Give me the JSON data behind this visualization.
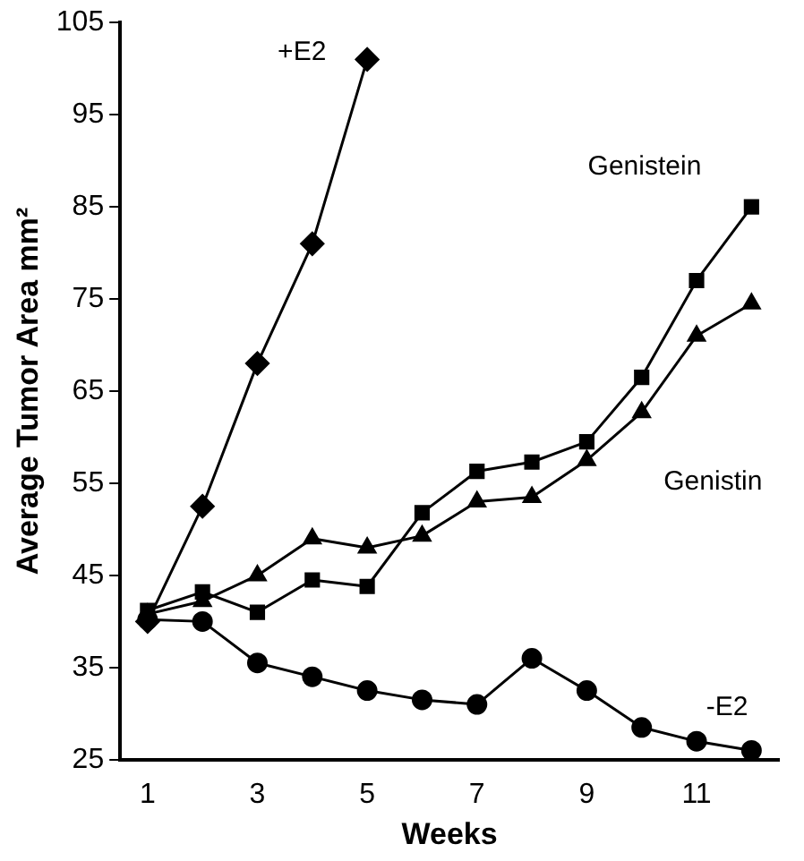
{
  "chart_data": {
    "type": "line",
    "xlabel": "Weeks",
    "ylabel": "Average Tumor Area mm²",
    "categories": [
      "1",
      null,
      "3",
      null,
      "5",
      null,
      "7",
      null,
      "9",
      null,
      "11",
      null
    ],
    "ylim": [
      25,
      105
    ],
    "yticks": [
      25,
      35,
      45,
      55,
      65,
      75,
      85,
      95,
      105
    ],
    "grid": false,
    "legend": false,
    "line_style": "solid",
    "series": [
      {
        "name": "+E2",
        "color": "#000000",
        "marker": "diamond",
        "values": [
          40,
          52.5,
          68,
          81,
          101,
          null,
          null,
          null,
          null,
          null,
          null,
          null
        ]
      },
      {
        "name": "Genistein",
        "color": "#000000",
        "marker": "square",
        "values": [
          41.2,
          43.2,
          41,
          44.5,
          43.8,
          51.8,
          56.3,
          57.3,
          59.5,
          66.5,
          77,
          85
        ]
      },
      {
        "name": "Genistin",
        "color": "#000000",
        "marker": "triangle",
        "values": [
          40.8,
          42.2,
          45,
          49,
          48,
          49.3,
          53,
          53.5,
          57.5,
          62.7,
          71,
          74.5
        ]
      },
      {
        "name": "-E2",
        "color": "#000000",
        "marker": "circle",
        "values": [
          40.2,
          40,
          35.5,
          34,
          32.5,
          31.5,
          31,
          36,
          32.5,
          28.5,
          27,
          26
        ]
      }
    ]
  }
}
